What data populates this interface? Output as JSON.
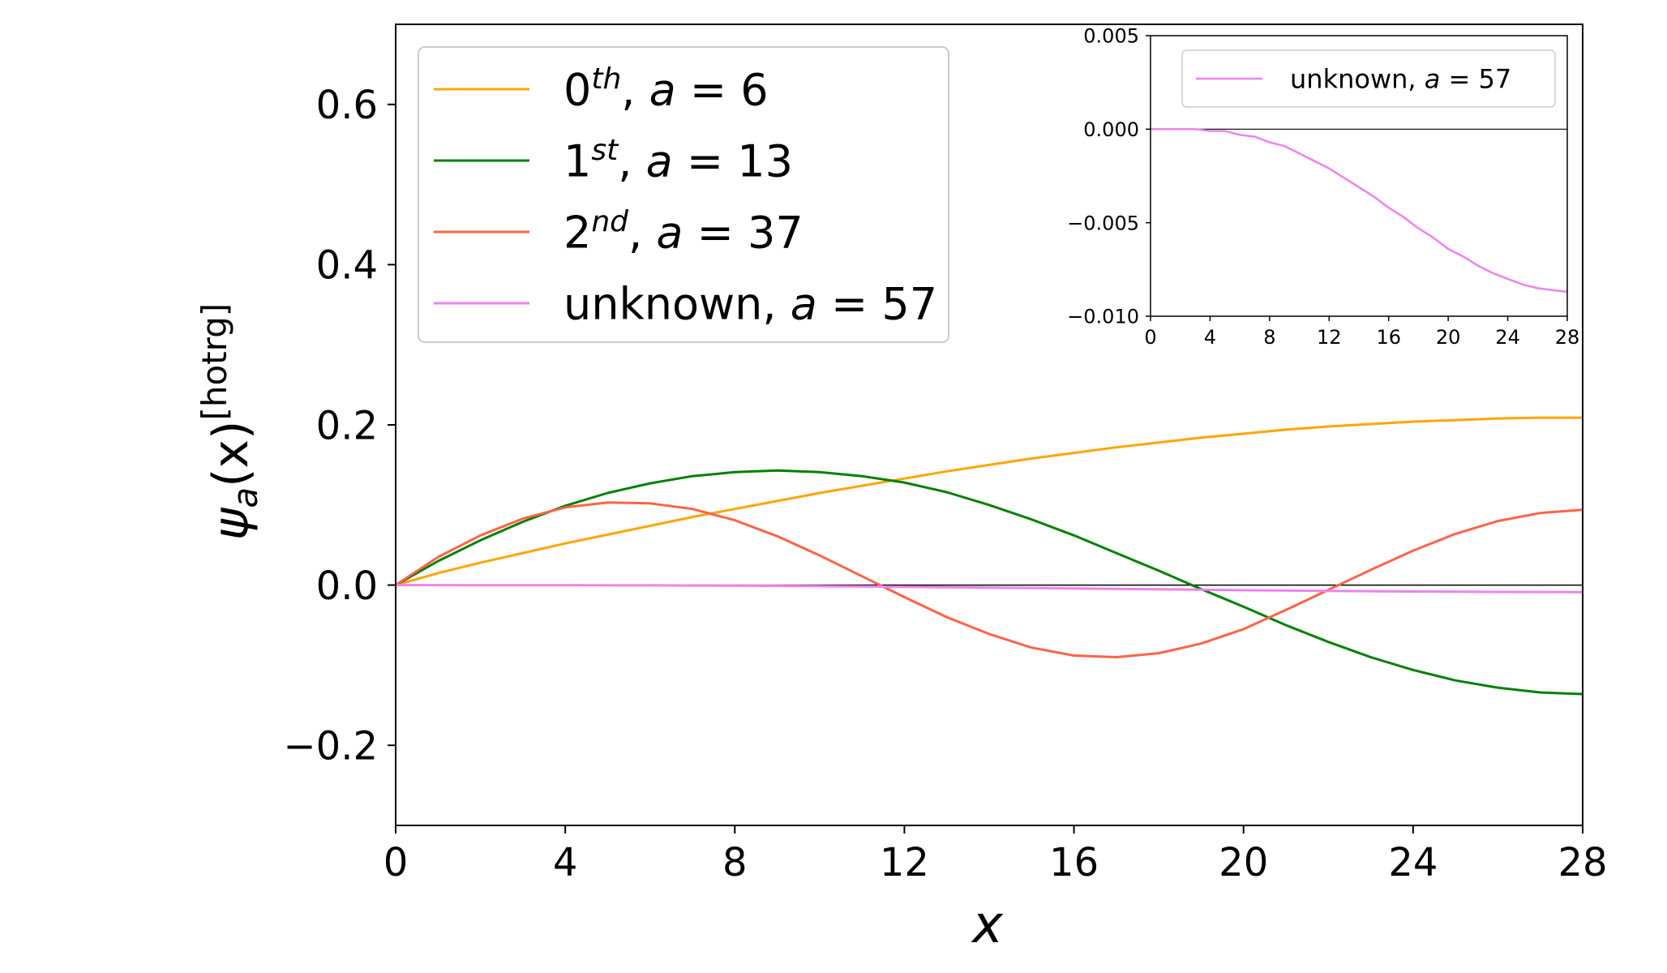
{
  "chart_data": [
    {
      "type": "line",
      "title": "",
      "xlabel": "x",
      "ylabel_main": "ψ",
      "ylabel_sub": "a",
      "ylabel_paren": "(x)",
      "ylabel_sup": "[hotrg]",
      "xlim": [
        0,
        28
      ],
      "ylim": [
        -0.3,
        0.7
      ],
      "xticks": [
        0,
        4,
        8,
        12,
        16,
        20,
        24,
        28
      ],
      "xtick_labels": [
        "0",
        "4",
        "8",
        "12",
        "16",
        "20",
        "24",
        "28"
      ],
      "yticks": [
        -0.2,
        0.0,
        0.2,
        0.4,
        0.6
      ],
      "ytick_labels": [
        "−0.2",
        "0.0",
        "0.2",
        "0.4",
        "0.6"
      ],
      "grid": false,
      "zero_line": true,
      "legend_position": "top-left",
      "series": [
        {
          "name": "0th, a = 6",
          "legend_base": "0",
          "legend_sup": "th",
          "legend_rest": ", ",
          "legend_var": "a",
          "legend_eq": " = 6",
          "color": "#FFA500",
          "x": [
            0,
            1,
            2,
            3,
            4,
            5,
            6,
            7,
            8,
            9,
            10,
            11,
            12,
            13,
            14,
            15,
            16,
            17,
            18,
            19,
            20,
            21,
            22,
            23,
            24,
            25,
            26,
            27,
            28
          ],
          "y": [
            0.0,
            0.015,
            0.028,
            0.04,
            0.052,
            0.063,
            0.074,
            0.085,
            0.095,
            0.105,
            0.115,
            0.124,
            0.133,
            0.142,
            0.15,
            0.158,
            0.165,
            0.172,
            0.178,
            0.184,
            0.189,
            0.194,
            0.198,
            0.201,
            0.204,
            0.206,
            0.208,
            0.209,
            0.209
          ]
        },
        {
          "name": "1st, a = 13",
          "legend_base": "1",
          "legend_sup": "st",
          "legend_rest": ", ",
          "legend_var": "a",
          "legend_eq": " = 13",
          "color": "#008000",
          "x": [
            0,
            1,
            2,
            3,
            4,
            5,
            6,
            7,
            8,
            9,
            10,
            11,
            12,
            13,
            14,
            15,
            16,
            17,
            18,
            19,
            20,
            21,
            22,
            23,
            24,
            25,
            26,
            27,
            28
          ],
          "y": [
            0.0,
            0.03,
            0.056,
            0.079,
            0.099,
            0.115,
            0.127,
            0.136,
            0.141,
            0.143,
            0.141,
            0.136,
            0.128,
            0.116,
            0.1,
            0.082,
            0.062,
            0.04,
            0.018,
            -0.005,
            -0.027,
            -0.05,
            -0.071,
            -0.09,
            -0.106,
            -0.119,
            -0.128,
            -0.134,
            -0.136
          ]
        },
        {
          "name": "2nd, a = 37",
          "legend_base": "2",
          "legend_sup": "nd",
          "legend_rest": ", ",
          "legend_var": "a",
          "legend_eq": " = 37",
          "color": "#FF6347",
          "x": [
            0,
            1,
            2,
            3,
            4,
            5,
            6,
            7,
            8,
            9,
            10,
            11,
            12,
            13,
            14,
            15,
            16,
            17,
            18,
            19,
            20,
            21,
            22,
            23,
            24,
            25,
            26,
            27,
            28
          ],
          "y": [
            0.0,
            0.035,
            0.062,
            0.083,
            0.097,
            0.103,
            0.102,
            0.095,
            0.081,
            0.061,
            0.037,
            0.011,
            -0.015,
            -0.04,
            -0.061,
            -0.078,
            -0.088,
            -0.09,
            -0.085,
            -0.073,
            -0.055,
            -0.031,
            -0.006,
            0.019,
            0.043,
            0.064,
            0.08,
            0.09,
            0.094
          ]
        },
        {
          "name": "unknown, a = 57",
          "legend_base": "unknown",
          "legend_sup": "",
          "legend_rest": ", ",
          "legend_var": "a",
          "legend_eq": " = 57",
          "color": "#EE82EE",
          "x": [
            0,
            2,
            4,
            6,
            8,
            10,
            12,
            14,
            16,
            18,
            20,
            22,
            24,
            26,
            27,
            28
          ],
          "y": [
            0.0,
            -0.0001,
            -0.0001,
            -0.0003,
            -0.0007,
            -0.0013,
            -0.0021,
            -0.0031,
            -0.0042,
            -0.0053,
            -0.0064,
            -0.0073,
            -0.008,
            -0.0085,
            -0.0086,
            -0.0087
          ]
        }
      ]
    },
    {
      "type": "line",
      "title": "",
      "inset": true,
      "xlim": [
        0,
        28
      ],
      "ylim": [
        -0.01,
        0.005
      ],
      "xticks": [
        0,
        4,
        8,
        12,
        16,
        20,
        24,
        28
      ],
      "xtick_labels": [
        "0",
        "4",
        "8",
        "12",
        "16",
        "20",
        "24",
        "28"
      ],
      "yticks": [
        -0.01,
        -0.005,
        0.0,
        0.005
      ],
      "ytick_labels": [
        "−0.010",
        "−0.005",
        "0.000",
        "0.005"
      ],
      "zero_line": true,
      "legend_position": "top-right",
      "series": [
        {
          "name": "unknown, a = 57",
          "legend_base": "unknown",
          "legend_rest": ", ",
          "legend_var": "a",
          "legend_eq": " = 57",
          "color": "#EE82EE",
          "x": [
            0,
            1,
            2,
            3,
            4,
            5,
            6,
            7,
            8,
            9,
            10,
            11,
            12,
            13,
            14,
            15,
            16,
            17,
            18,
            19,
            20,
            21,
            22,
            23,
            24,
            25,
            26,
            27,
            28
          ],
          "y": [
            0.0,
            0.0,
            0.0,
            0.0,
            -0.0001,
            -0.0001,
            -0.0003,
            -0.0004,
            -0.0007,
            -0.0009,
            -0.0013,
            -0.0017,
            -0.0021,
            -0.0026,
            -0.0031,
            -0.0036,
            -0.0042,
            -0.0047,
            -0.0053,
            -0.0058,
            -0.0064,
            -0.0068,
            -0.0073,
            -0.0077,
            -0.008,
            -0.0083,
            -0.0085,
            -0.0086,
            -0.0087
          ]
        }
      ]
    }
  ]
}
